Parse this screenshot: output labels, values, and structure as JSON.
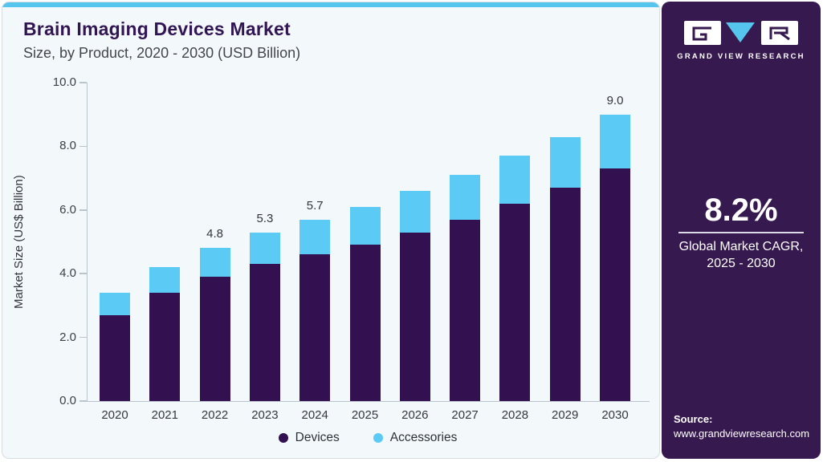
{
  "chart_data": {
    "type": "bar",
    "stacked": true,
    "title": "Brain Imaging Devices Market",
    "subtitle": "Size, by Product, 2020 - 2030 (USD Billion)",
    "ylabel": "Market Size (US$ Billion)",
    "xlabel": "",
    "ylim": [
      0,
      10
    ],
    "yticks": [
      "0.0",
      "2.0",
      "4.0",
      "6.0",
      "8.0",
      "10.0"
    ],
    "grid": false,
    "legend_position": "bottom",
    "categories": [
      "2020",
      "2021",
      "2022",
      "2023",
      "2024",
      "2025",
      "2026",
      "2027",
      "2028",
      "2029",
      "2030"
    ],
    "series": [
      {
        "name": "Devices",
        "color": "#331150",
        "values": [
          2.7,
          3.4,
          3.9,
          4.3,
          4.6,
          4.9,
          5.3,
          5.7,
          6.2,
          6.7,
          7.3
        ]
      },
      {
        "name": "Accessories",
        "color": "#5bcbf5",
        "values": [
          0.7,
          0.8,
          0.9,
          1.0,
          1.1,
          1.2,
          1.3,
          1.4,
          1.5,
          1.6,
          1.7
        ]
      }
    ],
    "bar_labels": [
      "",
      "",
      "4.8",
      "5.3",
      "5.7",
      "",
      "",
      "",
      "",
      "",
      "9.0"
    ]
  },
  "sidebar": {
    "brand": "GRAND VIEW RESEARCH",
    "cagr": {
      "value": "8.2%",
      "caption_line1": "Global Market CAGR,",
      "caption_line2": "2025 - 2030"
    },
    "source": {
      "label": "Source:",
      "url": "www.grandviewresearch.com"
    },
    "colors": {
      "background": "#36194f",
      "logo_box": "#ffffff",
      "logo_glyph": "#36194f",
      "logo_triangle": "#56c5ee"
    }
  },
  "theme": {
    "accent_bar": "#56c5ee",
    "card_background": "#f3f8fb",
    "axis_color": "#b9c4cd"
  }
}
